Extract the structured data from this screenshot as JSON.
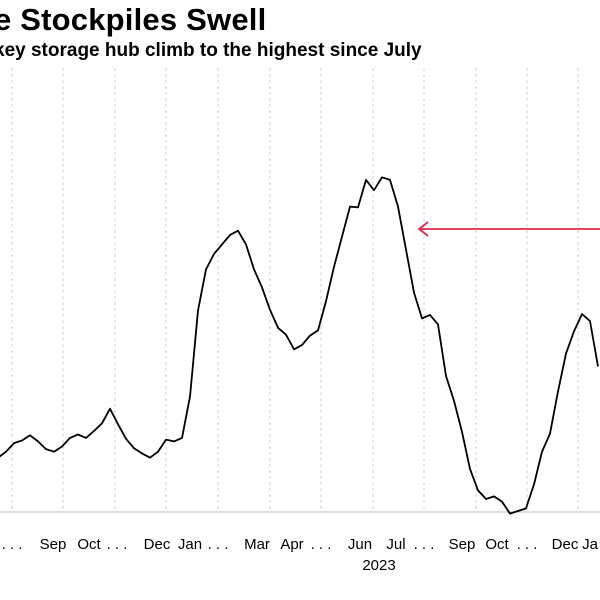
{
  "title": "e Stockpiles Swell",
  "subtitle": "key storage hub climb to the highest since July",
  "chart_data": {
    "type": "line",
    "title": "e Stockpiles Swell",
    "subtitle": "key storage hub climb to the highest since July",
    "x_tick_labels": [
      ". . .",
      "Sep",
      "Oct",
      ". . .",
      "Dec",
      "Jan",
      ". . .",
      "Mar",
      "Apr",
      ". . .",
      "Jun",
      "Jul",
      ". . .",
      "Sep",
      "Oct",
      ". . .",
      "Dec",
      "Ja"
    ],
    "year_label": "2023",
    "grid": true,
    "series": [
      {
        "color": "#000000",
        "values": [
          0.55,
          0.62,
          0.72,
          0.75,
          0.81,
          0.74,
          0.65,
          0.62,
          0.68,
          0.78,
          0.82,
          0.78,
          0.86,
          0.95,
          1.12,
          0.94,
          0.77,
          0.66,
          0.6,
          0.55,
          0.62,
          0.76,
          0.74,
          0.78,
          1.26,
          2.26,
          2.74,
          2.92,
          3.03,
          3.14,
          3.19,
          3.03,
          2.74,
          2.53,
          2.27,
          2.06,
          1.98,
          1.81,
          1.86,
          1.97,
          2.03,
          2.37,
          2.77,
          3.12,
          3.47,
          3.46,
          3.78,
          3.66,
          3.81,
          3.78,
          3.47,
          2.97,
          2.47,
          2.17,
          2.21,
          2.1,
          1.5,
          1.21,
          0.85,
          0.42,
          0.17,
          0.07,
          0.1,
          0.04,
          -0.1,
          -0.07,
          -0.04,
          0.24,
          0.62,
          0.83,
          1.32,
          1.76,
          2.02,
          2.22,
          2.14,
          1.61
        ]
      }
    ],
    "annotation": {
      "type": "arrow",
      "color": "#e0294a"
    }
  }
}
